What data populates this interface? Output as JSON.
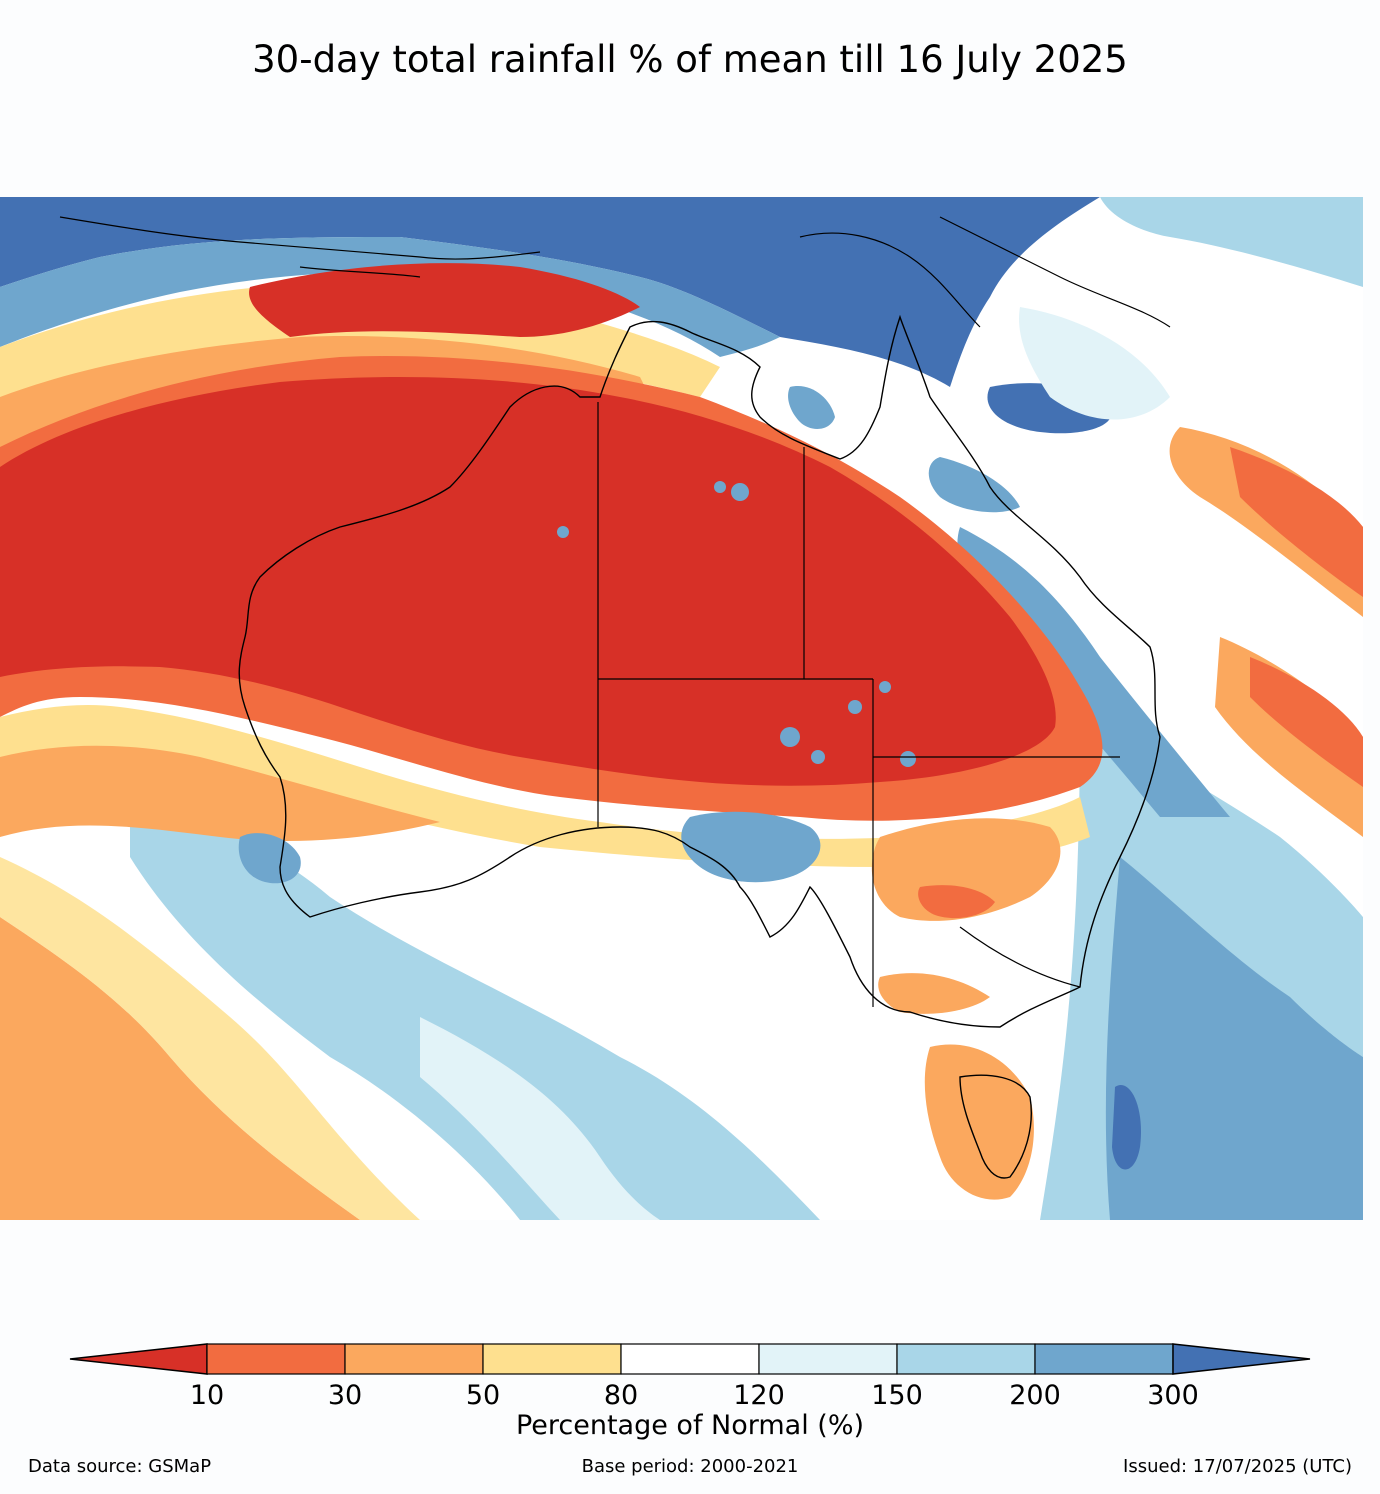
{
  "title": "30-day total rainfall % of mean till 16 July 2025",
  "colorbar": {
    "title": "Percentage of Normal (%)",
    "ticks": [
      "10",
      "30",
      "50",
      "80",
      "120",
      "150",
      "200",
      "300"
    ],
    "colors": [
      "#d73027",
      "#f26c40",
      "#fba85e",
      "#fee08f",
      "#ffffff",
      "#e2f3f8",
      "#a9d6e8",
      "#6fa6cd",
      "#4371b3"
    ]
  },
  "footer": {
    "source": "Data source: GSMaP",
    "base_period": "Base period: 2000-2021",
    "issued": "Issued: 17/07/2025 (UTC)"
  }
}
